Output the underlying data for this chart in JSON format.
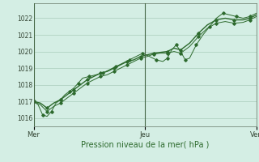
{
  "title": "",
  "xlabel": "Pression niveau de la mer( hPa )",
  "ylabel": "",
  "bg_color": "#d4eee4",
  "plot_bg_color": "#d4eee4",
  "grid_color": "#aaccbb",
  "line_color": "#2d6a2d",
  "marker_color": "#2d6a2d",
  "vline_color": "#446644",
  "ylim": [
    1015.5,
    1022.9
  ],
  "yticks": [
    1016,
    1017,
    1018,
    1019,
    1020,
    1021,
    1022
  ],
  "xtick_labels": [
    "Mer",
    "Jeu",
    "Ven"
  ],
  "xtick_positions": [
    0.0,
    0.5,
    1.0
  ],
  "line1_x": [
    0.0,
    0.02,
    0.04,
    0.06,
    0.08,
    0.1,
    0.12,
    0.14,
    0.16,
    0.18,
    0.2,
    0.22,
    0.25,
    0.28,
    0.31,
    0.34,
    0.37,
    0.4,
    0.43,
    0.46,
    0.49,
    0.52,
    0.55,
    0.58,
    0.6,
    0.62,
    0.64,
    0.66,
    0.68,
    0.7,
    0.73,
    0.76,
    0.79,
    0.82,
    0.85,
    0.88,
    0.91,
    0.94,
    0.97,
    1.0
  ],
  "line1_y": [
    1017.0,
    1016.8,
    1016.2,
    1016.1,
    1016.4,
    1016.9,
    1017.1,
    1017.4,
    1017.6,
    1017.8,
    1018.1,
    1018.4,
    1018.5,
    1018.6,
    1018.7,
    1018.9,
    1019.1,
    1019.3,
    1019.5,
    1019.7,
    1019.9,
    1019.7,
    1019.5,
    1019.4,
    1019.6,
    1020.1,
    1020.4,
    1020.0,
    1019.5,
    1019.6,
    1020.4,
    1021.0,
    1021.5,
    1022.0,
    1022.3,
    1022.2,
    1022.1,
    1022.0,
    1022.1,
    1022.3
  ],
  "line2_x": [
    0.0,
    0.03,
    0.06,
    0.09,
    0.12,
    0.15,
    0.18,
    0.21,
    0.24,
    0.27,
    0.3,
    0.33,
    0.36,
    0.39,
    0.42,
    0.45,
    0.48,
    0.51,
    0.54,
    0.57,
    0.6,
    0.63,
    0.66,
    0.7,
    0.74,
    0.78,
    0.82,
    0.86,
    0.9,
    0.94,
    0.97,
    1.0
  ],
  "line2_y": [
    1017.0,
    1016.9,
    1016.6,
    1016.9,
    1017.1,
    1017.4,
    1017.7,
    1018.0,
    1018.3,
    1018.5,
    1018.7,
    1018.8,
    1019.0,
    1019.2,
    1019.4,
    1019.5,
    1019.7,
    1019.8,
    1019.9,
    1019.95,
    1020.0,
    1020.2,
    1020.1,
    1020.5,
    1021.1,
    1021.6,
    1021.9,
    1022.0,
    1021.9,
    1021.9,
    1022.0,
    1022.2
  ],
  "line3_x": [
    0.0,
    0.03,
    0.06,
    0.09,
    0.12,
    0.15,
    0.18,
    0.21,
    0.24,
    0.27,
    0.3,
    0.33,
    0.36,
    0.39,
    0.42,
    0.45,
    0.48,
    0.51,
    0.54,
    0.57,
    0.6,
    0.63,
    0.66,
    0.7,
    0.74,
    0.78,
    0.82,
    0.86,
    0.9,
    0.94,
    0.97,
    1.0
  ],
  "line3_y": [
    1017.0,
    1016.8,
    1016.4,
    1016.7,
    1016.9,
    1017.2,
    1017.5,
    1017.8,
    1018.1,
    1018.3,
    1018.5,
    1018.6,
    1018.8,
    1019.0,
    1019.2,
    1019.4,
    1019.6,
    1019.7,
    1019.85,
    1019.9,
    1019.9,
    1020.0,
    1019.9,
    1020.3,
    1020.9,
    1021.4,
    1021.7,
    1021.8,
    1021.7,
    1021.75,
    1021.9,
    1022.1
  ]
}
